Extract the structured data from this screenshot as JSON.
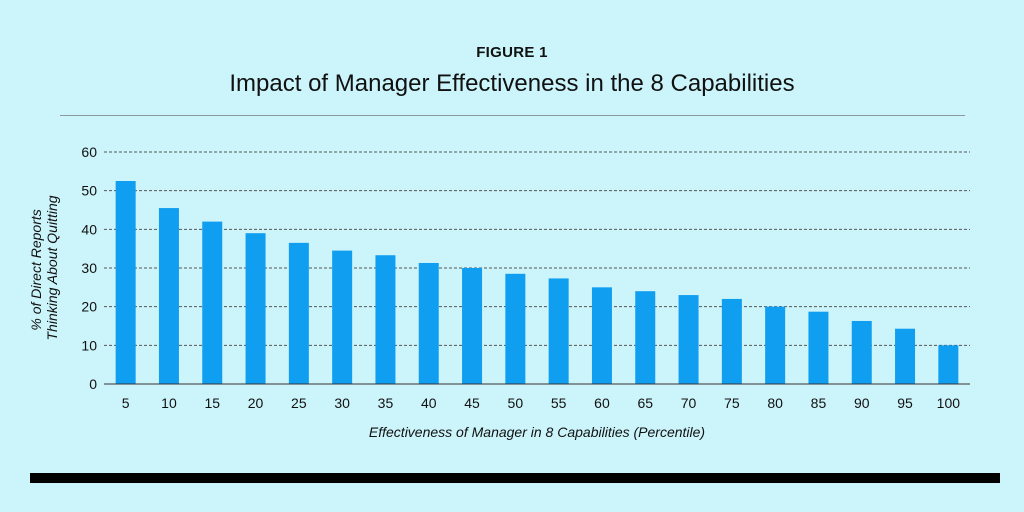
{
  "header": {
    "figure_label": "FIGURE 1",
    "title": "Impact of Manager Effectiveness in the 8 Capabilities"
  },
  "colors": {
    "background": "#ccf5fb",
    "bar": "#109ef0",
    "grid": "#555555",
    "bottom_bar": "#000000"
  },
  "chart_data": {
    "type": "bar",
    "title": "Impact of Manager Effectiveness in the 8 Capabilities",
    "xlabel": "Effectiveness of Manager in 8 Capabilities (Percentile)",
    "ylabel_lines": [
      "% of Direct Reports",
      "Thinking About Quitting"
    ],
    "categories": [
      "5",
      "10",
      "15",
      "20",
      "25",
      "30",
      "35",
      "40",
      "45",
      "50",
      "55",
      "60",
      "65",
      "70",
      "75",
      "80",
      "85",
      "90",
      "95",
      "100"
    ],
    "values": [
      52.5,
      45.5,
      42,
      39,
      36.5,
      34.5,
      33.3,
      31.3,
      30,
      28.5,
      27.3,
      25,
      24,
      23,
      22,
      20,
      18.7,
      16.3,
      14.3,
      10
    ],
    "yticks": [
      0,
      10,
      20,
      30,
      40,
      50,
      60
    ],
    "ylim": [
      0,
      60
    ],
    "grid": true,
    "grid_style": "dashed"
  }
}
